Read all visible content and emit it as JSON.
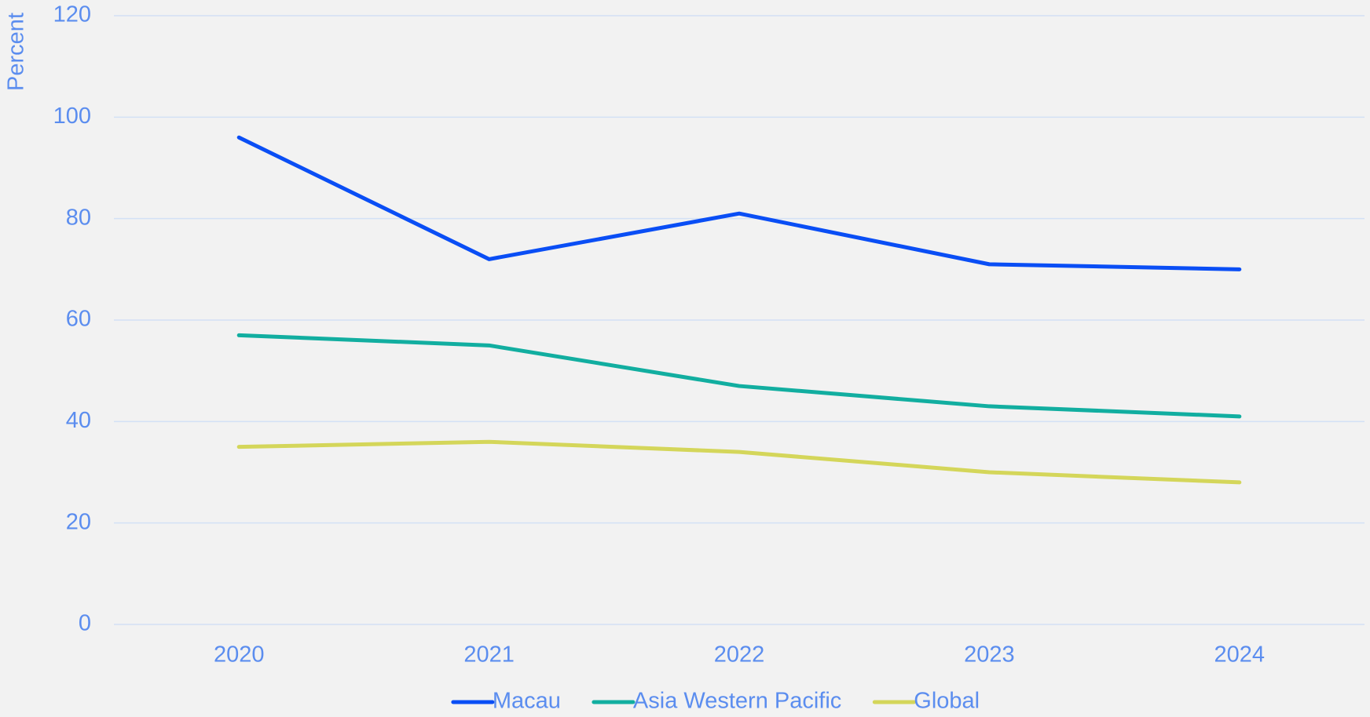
{
  "chart_data": {
    "type": "line",
    "y_label": "Percent",
    "categories": [
      "2020",
      "2021",
      "2022",
      "2023",
      "2024"
    ],
    "series": [
      {
        "name": "Macau",
        "color": "#0a4ef5",
        "values": [
          96,
          72,
          81,
          71,
          70
        ]
      },
      {
        "name": "Asia Western Pacific",
        "color": "#12aea0",
        "values": [
          57,
          55,
          47,
          43,
          41
        ]
      },
      {
        "name": "Global",
        "color": "#d4d65a",
        "values": [
          35,
          36,
          34,
          30,
          28
        ]
      }
    ],
    "ylim": [
      0,
      120
    ],
    "yticks": [
      0,
      20,
      40,
      60,
      80,
      100,
      120
    ],
    "grid": true,
    "legend": "bottom"
  }
}
